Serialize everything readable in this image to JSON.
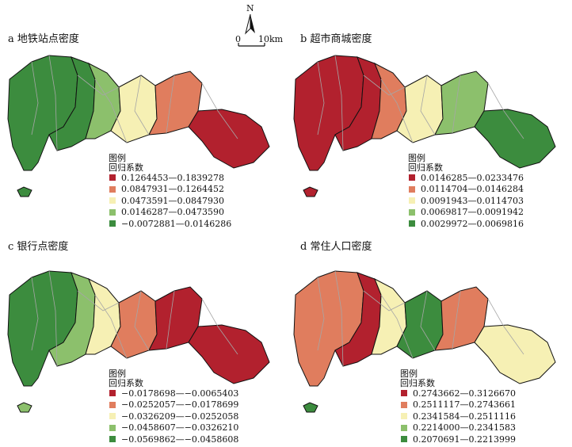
{
  "north_label": "N",
  "scale": {
    "start": "0",
    "end": "10km"
  },
  "colors": {
    "dark_red": "#b2212e",
    "salmon": "#e07d5e",
    "cream": "#f6f0b4",
    "light_green": "#8cc06c",
    "dark_green": "#3c8c3e",
    "outline": "#111111",
    "inner_line": "#a6a6a6"
  },
  "panels": [
    {
      "title": "a 地铁站点密度",
      "legend_title_1": "图例",
      "legend_title_2": "回归系数",
      "classes": [
        {
          "label": "0.1264453—0.1839278",
          "color": "#b2212e"
        },
        {
          "label": "0.0847931—0.1264452",
          "color": "#e07d5e"
        },
        {
          "label": "0.0473591—0.0847930",
          "color": "#f6f0b4"
        },
        {
          "label": "0.0146287—0.0473590",
          "color": "#8cc06c"
        },
        {
          "label": "−0.0072881—0.0146286",
          "color": "#3c8c3e"
        }
      ],
      "region_colors": [
        "#3c8c3e",
        "#3c8c3e",
        "#8cc06c",
        "#f6f0b4",
        "#e07d5e",
        "#b2212e",
        "#3c8c3e"
      ]
    },
    {
      "title": "b 超市商城密度",
      "legend_title_1": "图例",
      "legend_title_2": "回归系数",
      "classes": [
        {
          "label": "0.0146285—0.0233476",
          "color": "#b2212e"
        },
        {
          "label": "0.0114704—0.0146284",
          "color": "#e07d5e"
        },
        {
          "label": "0.0091943—0.0114703",
          "color": "#f6f0b4"
        },
        {
          "label": "0.0069817—0.0091942",
          "color": "#8cc06c"
        },
        {
          "label": "0.0029972—0.0069816",
          "color": "#3c8c3e"
        }
      ],
      "region_colors": [
        "#b2212e",
        "#b2212e",
        "#e07d5e",
        "#f6f0b4",
        "#8cc06c",
        "#3c8c3e",
        "#b2212e"
      ]
    },
    {
      "title": "c 银行点密度",
      "legend_title_1": "图例",
      "legend_title_2": "回归系数",
      "classes": [
        {
          "label": "−0.0178698—−0.0065403",
          "color": "#b2212e"
        },
        {
          "label": "−0.0252057—−0.0178699",
          "color": "#e07d5e"
        },
        {
          "label": "−0.0326209—−0.0252058",
          "color": "#f6f0b4"
        },
        {
          "label": "−0.0458607—−0.0326210",
          "color": "#8cc06c"
        },
        {
          "label": "−0.0569862—−0.0458608",
          "color": "#3c8c3e"
        }
      ],
      "region_colors": [
        "#3c8c3e",
        "#8cc06c",
        "#f6f0b4",
        "#e07d5e",
        "#b2212e",
        "#b2212e",
        "#8cc06c"
      ]
    },
    {
      "title": "d 常住人口密度",
      "legend_title_1": "图例",
      "legend_title_2": "回归系数",
      "classes": [
        {
          "label": "0.2743662—0.3126670",
          "color": "#b2212e"
        },
        {
          "label": "0.2511117—0.2743661",
          "color": "#e07d5e"
        },
        {
          "label": "0.2341584—0.2511116",
          "color": "#f6f0b4"
        },
        {
          "label": "0.2214000—0.2341583",
          "color": "#8cc06c"
        },
        {
          "label": "0.2070691—0.2213999",
          "color": "#3c8c3e"
        }
      ],
      "region_colors": [
        "#e07d5e",
        "#b2212e",
        "#f6f0b4",
        "#3c8c3e",
        "#e07d5e",
        "#f6f0b4",
        "#3c8c3e"
      ]
    }
  ]
}
